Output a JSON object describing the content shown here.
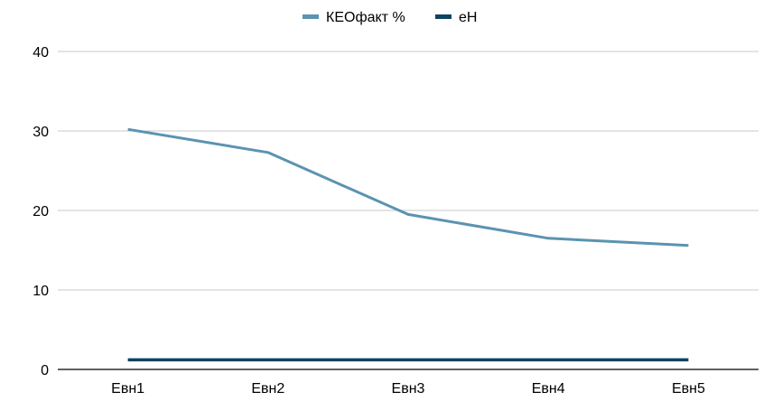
{
  "chart_data": {
    "type": "line",
    "categories": [
      "Евн1",
      "Евн2",
      "Евн3",
      "Евн4",
      "Евн5"
    ],
    "series": [
      {
        "name": "КЕОфакт %",
        "values": [
          30.2,
          27.3,
          19.5,
          16.5,
          15.6
        ],
        "color": "#5b93b1"
      },
      {
        "name": "еН",
        "values": [
          1.2,
          1.2,
          1.2,
          1.2,
          1.2
        ],
        "color": "#0e4461"
      }
    ],
    "ylim": [
      0,
      40
    ],
    "yticks": [
      "0",
      "10",
      "20",
      "30",
      "40"
    ],
    "grid": true,
    "legend_position": "top-center",
    "gridline_color": "#c8c8c8",
    "axis_color": "#000000"
  }
}
